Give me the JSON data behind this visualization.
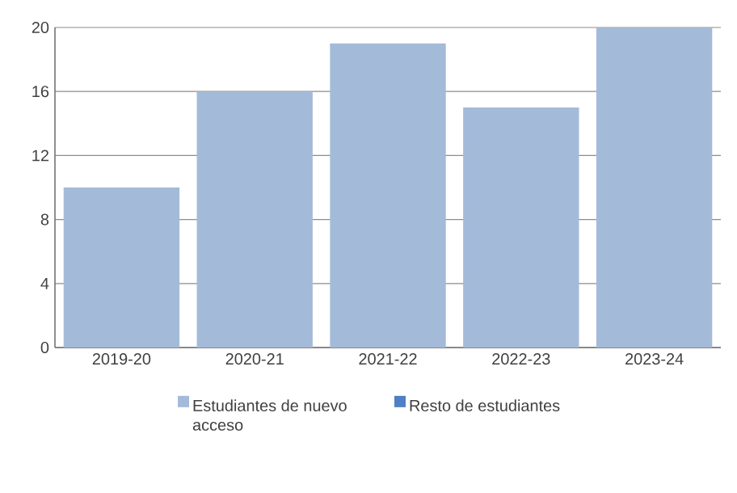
{
  "chart_data": {
    "type": "bar",
    "categories": [
      "2019-20",
      "2020-21",
      "2021-22",
      "2022-23",
      "2023-24"
    ],
    "series": [
      {
        "name": "Estudiantes de nuevo acceso",
        "color": "#a3bbd9",
        "values": [
          10,
          16,
          19,
          15,
          20
        ]
      },
      {
        "name": "Resto de estudiantes",
        "color": "#4f7fc4",
        "values": [
          null,
          null,
          null,
          null,
          null
        ]
      }
    ],
    "ylim": [
      0,
      20
    ],
    "yticks": [
      0,
      4,
      8,
      12,
      16,
      20
    ],
    "grid": "y",
    "legend": "bottom"
  }
}
